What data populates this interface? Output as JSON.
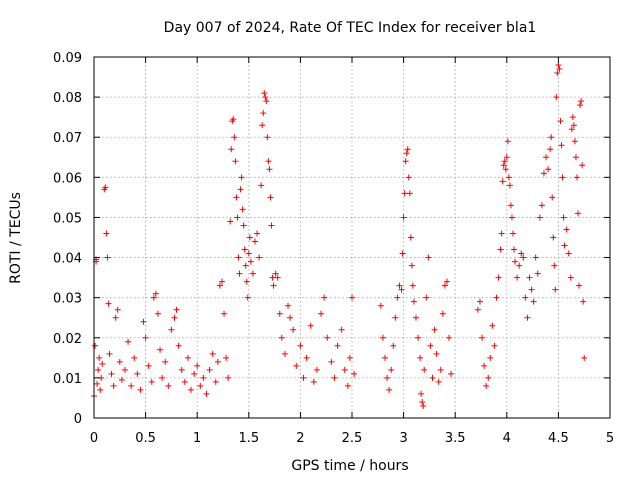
{
  "chart_data": {
    "type": "scatter",
    "title": "Day 007 of 2024, Rate Of TEC Index for receiver bla1",
    "xlabel": "GPS time / hours",
    "ylabel": "ROTI / TECUs",
    "xlim": [
      0,
      5
    ],
    "ylim": [
      0,
      0.09
    ],
    "x_ticks": [
      0,
      0.5,
      1,
      1.5,
      2,
      2.5,
      3,
      3.5,
      4,
      4.5,
      5
    ],
    "x_tick_labels": [
      "0",
      "0.5",
      "1",
      "1.5",
      "2",
      "2.5",
      "3",
      "3.5",
      "4",
      "4.5",
      "5"
    ],
    "y_ticks": [
      0,
      0.01,
      0.02,
      0.03,
      0.04,
      0.05,
      0.06,
      0.07,
      0.08,
      0.09
    ],
    "y_tick_labels": [
      "0",
      "0.01",
      "0.02",
      "0.03",
      "0.04",
      "0.05",
      "0.06",
      "0.07",
      "0.08",
      "0.09"
    ],
    "grid": true,
    "marker": "+",
    "color": "#ff0000",
    "series": [
      {
        "name": "ROTI",
        "points": [
          [
            0.0,
            0.0055
          ],
          [
            0.01,
            0.018
          ],
          [
            0.02,
            0.039
          ],
          [
            0.02,
            0.0395
          ],
          [
            0.03,
            0.0085
          ],
          [
            0.04,
            0.012
          ],
          [
            0.05,
            0.015
          ],
          [
            0.06,
            0.007
          ],
          [
            0.07,
            0.01
          ],
          [
            0.08,
            0.0135
          ],
          [
            0.1,
            0.057
          ],
          [
            0.11,
            0.0575
          ],
          [
            0.12,
            0.046
          ],
          [
            0.13,
            0.04
          ],
          [
            0.14,
            0.0285
          ],
          [
            0.15,
            0.016
          ],
          [
            0.17,
            0.011
          ],
          [
            0.19,
            0.008
          ],
          [
            0.21,
            0.025
          ],
          [
            0.23,
            0.027
          ],
          [
            0.25,
            0.014
          ],
          [
            0.27,
            0.0095
          ],
          [
            0.3,
            0.012
          ],
          [
            0.33,
            0.019
          ],
          [
            0.36,
            0.008
          ],
          [
            0.39,
            0.015
          ],
          [
            0.42,
            0.011
          ],
          [
            0.45,
            0.007
          ],
          [
            0.48,
            0.024
          ],
          [
            0.5,
            0.02
          ],
          [
            0.53,
            0.013
          ],
          [
            0.56,
            0.009
          ],
          [
            0.58,
            0.03
          ],
          [
            0.6,
            0.031
          ],
          [
            0.62,
            0.026
          ],
          [
            0.64,
            0.017
          ],
          [
            0.66,
            0.01
          ],
          [
            0.69,
            0.014
          ],
          [
            0.72,
            0.008
          ],
          [
            0.75,
            0.022
          ],
          [
            0.78,
            0.025
          ],
          [
            0.8,
            0.027
          ],
          [
            0.82,
            0.018
          ],
          [
            0.85,
            0.012
          ],
          [
            0.88,
            0.009
          ],
          [
            0.91,
            0.015
          ],
          [
            0.94,
            0.007
          ],
          [
            0.97,
            0.011
          ],
          [
            1.0,
            0.013
          ],
          [
            1.03,
            0.008
          ],
          [
            1.06,
            0.01
          ],
          [
            1.09,
            0.006
          ],
          [
            1.12,
            0.012
          ],
          [
            1.15,
            0.016
          ],
          [
            1.18,
            0.009
          ],
          [
            1.2,
            0.014
          ],
          [
            1.22,
            0.033
          ],
          [
            1.24,
            0.034
          ],
          [
            1.26,
            0.026
          ],
          [
            1.28,
            0.015
          ],
          [
            1.3,
            0.01
          ],
          [
            1.32,
            0.049
          ],
          [
            1.33,
            0.067
          ],
          [
            1.34,
            0.074
          ],
          [
            1.35,
            0.0745
          ],
          [
            1.36,
            0.07
          ],
          [
            1.37,
            0.064
          ],
          [
            1.38,
            0.055
          ],
          [
            1.39,
            0.05
          ],
          [
            1.4,
            0.04
          ],
          [
            1.41,
            0.036
          ],
          [
            1.42,
            0.057
          ],
          [
            1.43,
            0.06
          ],
          [
            1.44,
            0.052
          ],
          [
            1.45,
            0.048
          ],
          [
            1.46,
            0.042
          ],
          [
            1.47,
            0.038
          ],
          [
            1.48,
            0.034
          ],
          [
            1.49,
            0.03
          ],
          [
            1.5,
            0.041
          ],
          [
            1.51,
            0.045
          ],
          [
            1.52,
            0.039
          ],
          [
            1.54,
            0.036
          ],
          [
            1.56,
            0.044
          ],
          [
            1.58,
            0.046
          ],
          [
            1.6,
            0.04
          ],
          [
            1.62,
            0.058
          ],
          [
            1.63,
            0.073
          ],
          [
            1.64,
            0.076
          ],
          [
            1.65,
            0.081
          ],
          [
            1.66,
            0.08
          ],
          [
            1.67,
            0.079
          ],
          [
            1.68,
            0.07
          ],
          [
            1.69,
            0.064
          ],
          [
            1.7,
            0.062
          ],
          [
            1.71,
            0.055
          ],
          [
            1.72,
            0.048
          ],
          [
            1.73,
            0.035
          ],
          [
            1.74,
            0.033
          ],
          [
            1.76,
            0.036
          ],
          [
            1.78,
            0.035
          ],
          [
            1.8,
            0.026
          ],
          [
            1.82,
            0.02
          ],
          [
            1.85,
            0.016
          ],
          [
            1.88,
            0.028
          ],
          [
            1.9,
            0.025
          ],
          [
            1.93,
            0.022
          ],
          [
            1.96,
            0.013
          ],
          [
            2.0,
            0.018
          ],
          [
            2.03,
            0.01
          ],
          [
            2.06,
            0.015
          ],
          [
            2.1,
            0.023
          ],
          [
            2.13,
            0.009
          ],
          [
            2.16,
            0.012
          ],
          [
            2.2,
            0.026
          ],
          [
            2.23,
            0.03
          ],
          [
            2.26,
            0.02
          ],
          [
            2.3,
            0.014
          ],
          [
            2.33,
            0.01
          ],
          [
            2.36,
            0.018
          ],
          [
            2.4,
            0.022
          ],
          [
            2.43,
            0.012
          ],
          [
            2.46,
            0.008
          ],
          [
            2.48,
            0.015
          ],
          [
            2.5,
            0.03
          ],
          [
            2.52,
            0.011
          ],
          [
            2.78,
            0.028
          ],
          [
            2.8,
            0.02
          ],
          [
            2.82,
            0.015
          ],
          [
            2.84,
            0.01
          ],
          [
            2.86,
            0.007
          ],
          [
            2.88,
            0.012
          ],
          [
            2.9,
            0.018
          ],
          [
            2.92,
            0.025
          ],
          [
            2.94,
            0.03
          ],
          [
            2.96,
            0.033
          ],
          [
            2.98,
            0.032
          ],
          [
            2.99,
            0.041
          ],
          [
            3.0,
            0.05
          ],
          [
            3.01,
            0.056
          ],
          [
            3.02,
            0.064
          ],
          [
            3.03,
            0.066
          ],
          [
            3.04,
            0.067
          ],
          [
            3.05,
            0.06
          ],
          [
            3.06,
            0.056
          ],
          [
            3.07,
            0.045
          ],
          [
            3.08,
            0.038
          ],
          [
            3.09,
            0.033
          ],
          [
            3.1,
            0.029
          ],
          [
            3.12,
            0.025
          ],
          [
            3.14,
            0.02
          ],
          [
            3.16,
            0.015
          ],
          [
            3.17,
            0.006
          ],
          [
            3.18,
            0.004
          ],
          [
            3.19,
            0.003
          ],
          [
            3.2,
            0.012
          ],
          [
            3.22,
            0.03
          ],
          [
            3.24,
            0.04
          ],
          [
            3.26,
            0.018
          ],
          [
            3.28,
            0.01
          ],
          [
            3.3,
            0.022
          ],
          [
            3.32,
            0.016
          ],
          [
            3.34,
            0.009
          ],
          [
            3.36,
            0.012
          ],
          [
            3.38,
            0.026
          ],
          [
            3.4,
            0.033
          ],
          [
            3.42,
            0.034
          ],
          [
            3.44,
            0.02
          ],
          [
            3.46,
            0.011
          ],
          [
            3.72,
            0.027
          ],
          [
            3.74,
            0.029
          ],
          [
            3.76,
            0.02
          ],
          [
            3.78,
            0.013
          ],
          [
            3.8,
            0.008
          ],
          [
            3.82,
            0.01
          ],
          [
            3.84,
            0.015
          ],
          [
            3.86,
            0.023
          ],
          [
            3.88,
            0.018
          ],
          [
            3.9,
            0.03
          ],
          [
            3.92,
            0.035
          ],
          [
            3.94,
            0.042
          ],
          [
            3.95,
            0.046
          ],
          [
            3.96,
            0.059
          ],
          [
            3.97,
            0.063
          ],
          [
            3.98,
            0.064
          ],
          [
            3.99,
            0.062
          ],
          [
            4.0,
            0.065
          ],
          [
            4.01,
            0.069
          ],
          [
            4.02,
            0.06
          ],
          [
            4.03,
            0.058
          ],
          [
            4.04,
            0.053
          ],
          [
            4.05,
            0.05
          ],
          [
            4.06,
            0.046
          ],
          [
            4.07,
            0.042
          ],
          [
            4.08,
            0.039
          ],
          [
            4.1,
            0.035
          ],
          [
            4.12,
            0.038
          ],
          [
            4.14,
            0.041
          ],
          [
            4.16,
            0.04
          ],
          [
            4.18,
            0.03
          ],
          [
            4.2,
            0.025
          ],
          [
            4.22,
            0.035
          ],
          [
            4.24,
            0.032
          ],
          [
            4.26,
            0.029
          ],
          [
            4.28,
            0.04
          ],
          [
            4.3,
            0.036
          ],
          [
            4.32,
            0.05
          ],
          [
            4.34,
            0.053
          ],
          [
            4.36,
            0.061
          ],
          [
            4.38,
            0.065
          ],
          [
            4.4,
            0.062
          ],
          [
            4.42,
            0.067
          ],
          [
            4.43,
            0.07
          ],
          [
            4.44,
            0.055
          ],
          [
            4.45,
            0.045
          ],
          [
            4.46,
            0.038
          ],
          [
            4.47,
            0.032
          ],
          [
            4.48,
            0.08
          ],
          [
            4.49,
            0.086
          ],
          [
            4.5,
            0.088
          ],
          [
            4.51,
            0.087
          ],
          [
            4.52,
            0.074
          ],
          [
            4.53,
            0.068
          ],
          [
            4.54,
            0.06
          ],
          [
            4.55,
            0.05
          ],
          [
            4.56,
            0.043
          ],
          [
            4.58,
            0.047
          ],
          [
            4.6,
            0.041
          ],
          [
            4.62,
            0.035
          ],
          [
            4.63,
            0.072
          ],
          [
            4.64,
            0.075
          ],
          [
            4.65,
            0.073
          ],
          [
            4.66,
            0.069
          ],
          [
            4.67,
            0.065
          ],
          [
            4.68,
            0.06
          ],
          [
            4.69,
            0.051
          ],
          [
            4.7,
            0.033
          ],
          [
            4.71,
            0.078
          ],
          [
            4.72,
            0.079
          ],
          [
            4.73,
            0.063
          ],
          [
            4.74,
            0.029
          ],
          [
            4.75,
            0.015
          ]
        ]
      }
    ]
  }
}
